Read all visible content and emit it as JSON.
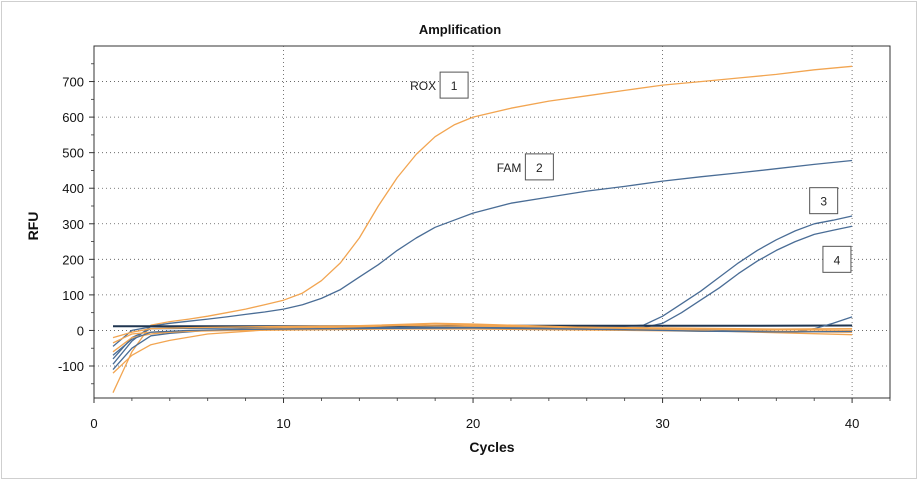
{
  "chart_data": {
    "type": "line",
    "title": "Amplification",
    "xlabel": "Cycles",
    "ylabel": "RFU",
    "xlim": [
      0,
      42
    ],
    "ylim": [
      -190,
      800
    ],
    "xticks": [
      "0",
      "10",
      "20",
      "30",
      "40"
    ],
    "yticks": [
      "-100",
      "0",
      "100",
      "200",
      "300",
      "400",
      "500",
      "600",
      "700"
    ],
    "grid": true,
    "colors": {
      "orange": "#f2a551",
      "blue": "#4a6d96",
      "dark": "#1f3550"
    },
    "annotations": [
      {
        "label": "ROX",
        "box": "1",
        "x": 19,
        "y": 690
      },
      {
        "label": "FAM",
        "box": "2",
        "x": 23.5,
        "y": 460
      },
      {
        "label": "",
        "box": "3",
        "x": 38.5,
        "y": 365
      },
      {
        "label": "",
        "box": "4",
        "x": 39.2,
        "y": 200
      }
    ],
    "series": [
      {
        "color": "#f2a551",
        "x": [
          1,
          2,
          3,
          4,
          5,
          6,
          7,
          8,
          9,
          10,
          11,
          12,
          13,
          14,
          15,
          16,
          17,
          18,
          19,
          20,
          22,
          24,
          26,
          28,
          30,
          32,
          34,
          36,
          38,
          40
        ],
        "y": [
          -175,
          -60,
          15,
          25,
          32,
          40,
          50,
          60,
          72,
          85,
          105,
          140,
          190,
          260,
          350,
          430,
          495,
          545,
          578,
          600,
          625,
          645,
          660,
          675,
          690,
          700,
          710,
          720,
          733,
          743
        ]
      },
      {
        "color": "#4a6d96",
        "x": [
          1,
          2,
          3,
          4,
          5,
          6,
          7,
          8,
          9,
          10,
          11,
          12,
          13,
          14,
          15,
          16,
          17,
          18,
          19,
          20,
          22,
          24,
          26,
          28,
          30,
          32,
          34,
          36,
          38,
          40
        ],
        "y": [
          -95,
          -30,
          12,
          20,
          26,
          32,
          38,
          45,
          52,
          60,
          72,
          90,
          115,
          150,
          185,
          225,
          260,
          290,
          310,
          330,
          358,
          375,
          392,
          405,
          420,
          432,
          443,
          455,
          467,
          478
        ]
      },
      {
        "color": "#4a6d96",
        "x": [
          1,
          2,
          3,
          5,
          8,
          12,
          16,
          20,
          24,
          27,
          28,
          29,
          30,
          31,
          32,
          33,
          34,
          35,
          36,
          37,
          38,
          39,
          40
        ],
        "y": [
          -45,
          0,
          10,
          10,
          10,
          10,
          11,
          12,
          12,
          12,
          12,
          15,
          40,
          75,
          110,
          150,
          190,
          225,
          255,
          280,
          300,
          310,
          322
        ]
      },
      {
        "color": "#4a6d96",
        "x": [
          1,
          2,
          3,
          5,
          8,
          12,
          16,
          20,
          24,
          28,
          29,
          30,
          31,
          32,
          33,
          34,
          35,
          36,
          37,
          38,
          39,
          40
        ],
        "y": [
          -80,
          -20,
          5,
          6,
          7,
          7,
          8,
          8,
          8,
          8,
          8,
          20,
          50,
          85,
          120,
          160,
          195,
          225,
          250,
          270,
          282,
          293
        ]
      },
      {
        "color": "#1f3550",
        "x": [
          1,
          5,
          10,
          15,
          20,
          25,
          30,
          35,
          40
        ],
        "y": [
          12,
          12,
          12,
          12,
          13,
          13,
          13,
          13,
          14
        ]
      },
      {
        "color": "#4a6d96",
        "x": [
          1,
          2,
          3,
          4,
          6,
          10,
          15,
          20,
          25,
          30,
          34,
          37,
          38,
          39,
          40
        ],
        "y": [
          -110,
          -50,
          -15,
          -8,
          0,
          5,
          8,
          10,
          8,
          5,
          0,
          -5,
          5,
          20,
          38
        ]
      },
      {
        "color": "#f2a551",
        "x": [
          1,
          2,
          3,
          4,
          6,
          10,
          15,
          18,
          20,
          25,
          30,
          35,
          40
        ],
        "y": [
          -120,
          -70,
          -40,
          -28,
          -10,
          5,
          12,
          18,
          15,
          8,
          5,
          2,
          0
        ]
      },
      {
        "color": "#f2a551",
        "x": [
          1,
          2,
          3,
          4,
          6,
          10,
          15,
          18,
          20,
          25,
          30,
          35,
          40
        ],
        "y": [
          -60,
          -20,
          -10,
          -5,
          0,
          8,
          15,
          20,
          18,
          10,
          3,
          -5,
          -12
        ]
      },
      {
        "color": "#f2a551",
        "x": [
          1,
          2,
          3,
          5,
          8,
          12,
          16,
          20,
          24,
          28,
          32,
          36,
          40
        ],
        "y": [
          -20,
          -5,
          5,
          8,
          10,
          12,
          14,
          12,
          10,
          8,
          6,
          4,
          5
        ]
      },
      {
        "color": "#f2a551",
        "x": [
          1,
          2,
          3,
          5,
          8,
          12,
          16,
          20,
          24,
          28,
          32,
          36,
          40
        ],
        "y": [
          -35,
          -10,
          -5,
          -2,
          0,
          2,
          4,
          4,
          2,
          0,
          -2,
          -3,
          -5
        ]
      },
      {
        "color": "#4a6d96",
        "x": [
          1,
          2,
          3,
          5,
          8,
          12,
          16,
          20,
          24,
          28,
          32,
          36,
          40
        ],
        "y": [
          -70,
          -25,
          -5,
          0,
          3,
          5,
          6,
          7,
          5,
          2,
          -2,
          -4,
          -3
        ]
      }
    ]
  }
}
